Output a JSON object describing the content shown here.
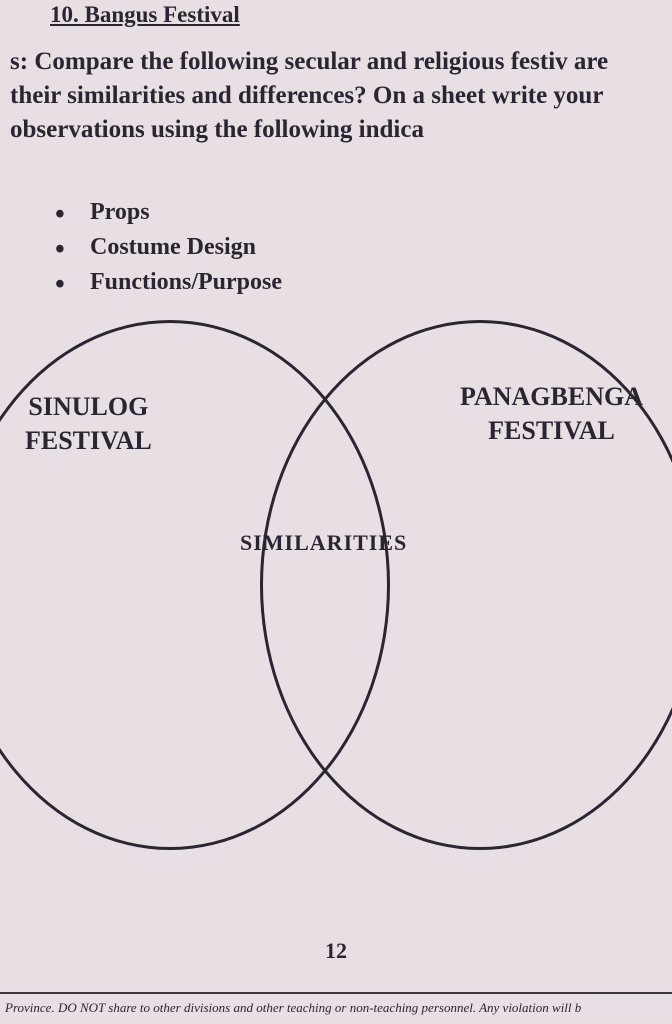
{
  "header": {
    "question_number": "10. Bangus Festival"
  },
  "instructions": {
    "prefix": "s:",
    "text": "Compare the following secular and religious festiv are their similarities and differences? On a sheet write your observations using the following indica"
  },
  "bullets": {
    "item1": "Props",
    "item2": "Costume Design",
    "item3": "Functions/Purpose"
  },
  "venn": {
    "left_label_line1": "SINULOG",
    "left_label_line2": "FESTIVAL",
    "right_label_line1": "PANAGBENGA",
    "right_label_line2": "FESTIVAL",
    "center_label": "SIMILARITIES"
  },
  "page_number": "12",
  "footer": "Province. DO NOT share to other divisions and other teaching or non-teaching personnel. Any violation will b",
  "colors": {
    "background": "#e8dfe4",
    "text": "#2a2530",
    "circle_border": "#2a2530"
  }
}
